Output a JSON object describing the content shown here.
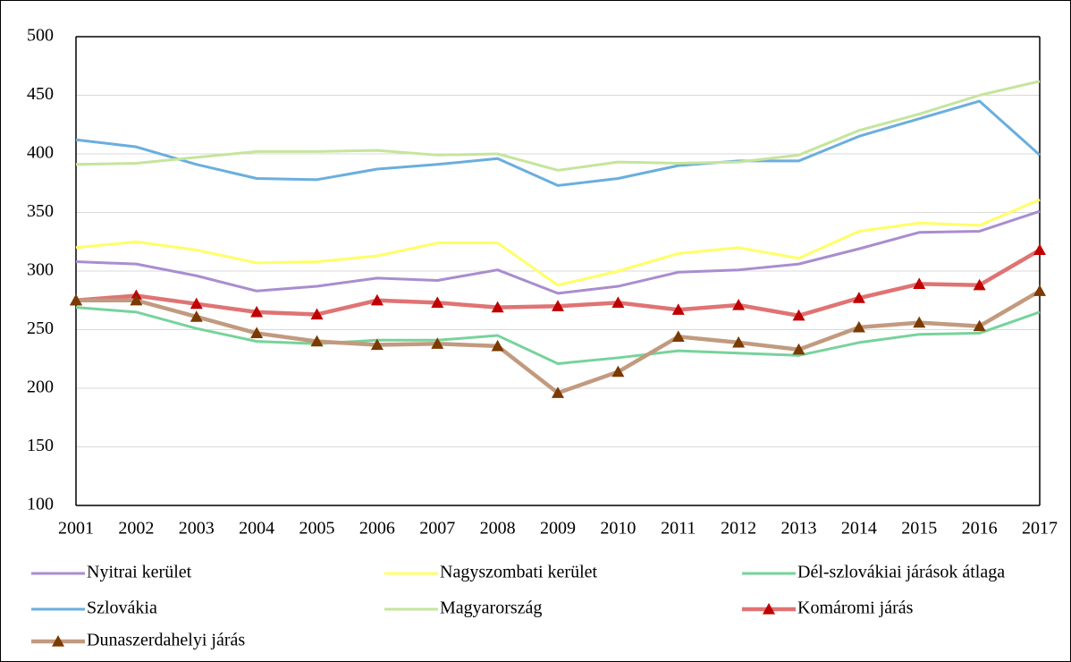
{
  "chart_data": {
    "type": "line",
    "categories": [
      "2001",
      "2002",
      "2003",
      "2004",
      "2005",
      "2006",
      "2007",
      "2008",
      "2009",
      "2010",
      "2011",
      "2012",
      "2013",
      "2014",
      "2015",
      "2016",
      "2017"
    ],
    "ylim": [
      100,
      500
    ],
    "yticks": [
      100,
      150,
      200,
      250,
      300,
      350,
      400,
      450,
      500
    ],
    "grid": true,
    "legend": "bottom",
    "series": [
      {
        "name": "Nyitrai kerület",
        "color": "#a98dcf",
        "values": [
          308,
          306,
          296,
          283,
          287,
          294,
          292,
          301,
          281,
          287,
          299,
          301,
          306,
          319,
          333,
          334,
          351
        ]
      },
      {
        "name": "Nagyszombati kerület",
        "color": "#ffff66",
        "values": [
          320,
          325,
          318,
          307,
          308,
          313,
          324,
          324,
          288,
          300,
          315,
          320,
          311,
          334,
          341,
          339,
          361
        ]
      },
      {
        "name": "Dél-szlovákiai járások átlaga",
        "color": "#77d39b",
        "values": [
          269,
          265,
          251,
          240,
          238,
          241,
          241,
          245,
          221,
          226,
          232,
          230,
          228,
          239,
          246,
          247,
          265
        ]
      },
      {
        "name": "Szlovákia",
        "color": "#6aaede",
        "values": [
          412,
          406,
          391,
          379,
          378,
          387,
          391,
          396,
          373,
          379,
          390,
          394,
          394,
          415,
          430,
          445,
          399
        ]
      },
      {
        "name": "Magyarország",
        "color": "#c5e59c",
        "values": [
          391,
          392,
          397,
          402,
          402,
          403,
          399,
          400,
          386,
          393,
          392,
          393,
          399,
          420,
          434,
          450,
          462
        ]
      },
      {
        "name": "Komáromi járás",
        "color": "#e07373",
        "marker": "triangle",
        "marker_color": "#c00000",
        "values": [
          275,
          279,
          272,
          265,
          263,
          275,
          273,
          269,
          270,
          273,
          267,
          271,
          262,
          277,
          289,
          288,
          318
        ]
      },
      {
        "name": "Dunaszerdahelyi járás",
        "color": "#c19a7f",
        "marker": "triangle",
        "marker_color": "#7a3a00",
        "values": [
          275,
          275,
          261,
          247,
          240,
          237,
          238,
          236,
          196,
          214,
          244,
          239,
          233,
          252,
          256,
          253,
          283
        ]
      }
    ]
  }
}
